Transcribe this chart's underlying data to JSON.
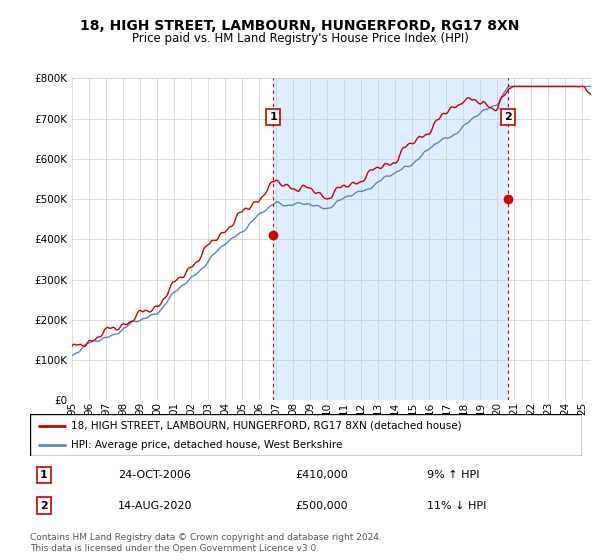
{
  "title": "18, HIGH STREET, LAMBOURN, HUNGERFORD, RG17 8XN",
  "subtitle": "Price paid vs. HM Land Registry's House Price Index (HPI)",
  "ylabel_ticks": [
    "£0",
    "£100K",
    "£200K",
    "£300K",
    "£400K",
    "£500K",
    "£600K",
    "£700K",
    "£800K"
  ],
  "ytick_values": [
    0,
    100000,
    200000,
    300000,
    400000,
    500000,
    600000,
    700000,
    800000
  ],
  "ylim": [
    0,
    800000
  ],
  "sale1_date_label": "24-OCT-2006",
  "sale1_price": 410000,
  "sale1_price_label": "£410,000",
  "sale1_hpi_label": "9% ↑ HPI",
  "sale2_date_label": "14-AUG-2020",
  "sale2_price": 500000,
  "sale2_price_label": "£500,000",
  "sale2_hpi_label": "11% ↓ HPI",
  "red_color": "#cc0000",
  "blue_color": "#5588bb",
  "fill_color": "#ddeeff",
  "legend_label_red": "18, HIGH STREET, LAMBOURN, HUNGERFORD, RG17 8XN (detached house)",
  "legend_label_blue": "HPI: Average price, detached house, West Berkshire",
  "footer": "Contains HM Land Registry data © Crown copyright and database right 2024.\nThis data is licensed under the Open Government Licence v3.0.",
  "sale1_x": 2006.82,
  "sale2_x": 2020.62,
  "xmin": 1995.0,
  "xmax": 2025.5,
  "title_fontsize": 10,
  "subtitle_fontsize": 8.5
}
